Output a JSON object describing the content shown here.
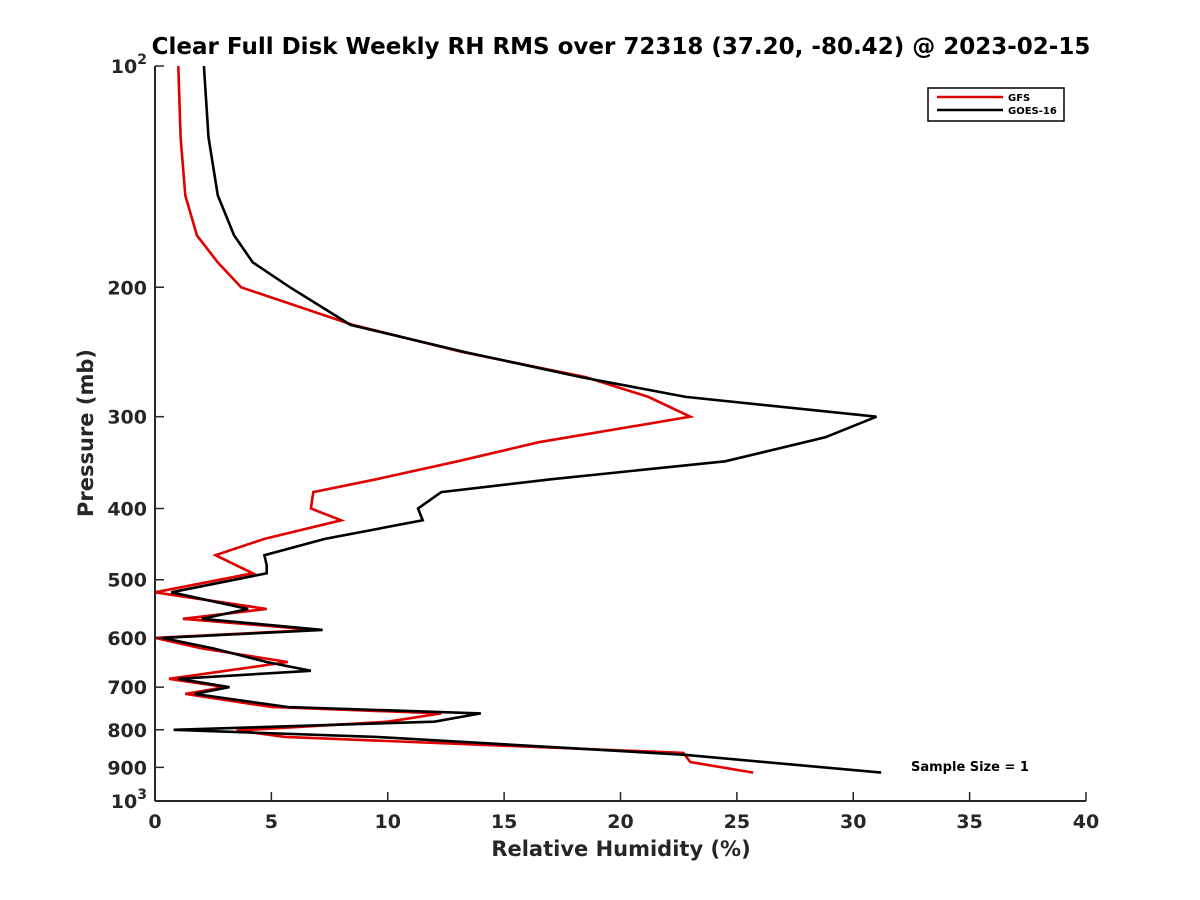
{
  "chart_data": {
    "type": "line",
    "title": "Clear Full Disk Weekly RH RMS over 72318 (37.20, -80.42) @ 2023-02-15",
    "xlabel": "Relative Humidity (%)",
    "ylabel": "Pressure (mb)",
    "xlim": [
      0,
      40
    ],
    "ylim": [
      100,
      1000
    ],
    "y_scale": "log",
    "y_reversed": true,
    "x_ticks": [
      "0",
      "5",
      "10",
      "15",
      "20",
      "25",
      "30",
      "35",
      "40"
    ],
    "y_ticks": [
      {
        "value": 100,
        "base": "10",
        "exp": "2"
      },
      {
        "value": 200,
        "label": "200"
      },
      {
        "value": 300,
        "label": "300"
      },
      {
        "value": 400,
        "label": "400"
      },
      {
        "value": 500,
        "label": "500"
      },
      {
        "value": 600,
        "label": "600"
      },
      {
        "value": 700,
        "label": "700"
      },
      {
        "value": 800,
        "label": "800"
      },
      {
        "value": 900,
        "label": "900"
      },
      {
        "value": 1000,
        "base": "10",
        "exp": "3"
      }
    ],
    "legend_position": "top-right",
    "annotation": "Sample Size = 1",
    "series": [
      {
        "name": "GFS",
        "color": "#e00000",
        "points": [
          [
            1.0,
            100
          ],
          [
            1.1,
            125
          ],
          [
            1.3,
            150
          ],
          [
            1.8,
            170
          ],
          [
            2.7,
            185
          ],
          [
            3.7,
            200
          ],
          [
            8.5,
            225
          ],
          [
            13.2,
            245
          ],
          [
            18.5,
            265
          ],
          [
            21.2,
            282
          ],
          [
            23.0,
            300
          ],
          [
            16.5,
            325
          ],
          [
            13.0,
            345
          ],
          [
            9.5,
            365
          ],
          [
            6.8,
            380
          ],
          [
            6.7,
            400
          ],
          [
            8.0,
            415
          ],
          [
            4.7,
            440
          ],
          [
            2.6,
            463
          ],
          [
            3.5,
            478
          ],
          [
            4.2,
            490
          ],
          [
            0.0,
            520
          ],
          [
            4.8,
            548
          ],
          [
            1.2,
            565
          ],
          [
            6.9,
            585
          ],
          [
            0.0,
            600
          ],
          [
            2.0,
            620
          ],
          [
            5.7,
            647
          ],
          [
            0.6,
            682
          ],
          [
            3.0,
            700
          ],
          [
            1.3,
            715
          ],
          [
            5.0,
            745
          ],
          [
            12.3,
            760
          ],
          [
            10.0,
            780
          ],
          [
            3.5,
            802
          ],
          [
            5.6,
            818
          ],
          [
            22.7,
            860
          ],
          [
            23.0,
            885
          ],
          [
            25.7,
            915
          ]
        ]
      },
      {
        "name": "GOES-16",
        "color": "#000000",
        "points": [
          [
            2.1,
            100
          ],
          [
            2.3,
            125
          ],
          [
            2.7,
            150
          ],
          [
            3.4,
            170
          ],
          [
            4.2,
            185
          ],
          [
            5.8,
            200
          ],
          [
            8.4,
            225
          ],
          [
            13.3,
            245
          ],
          [
            18.3,
            265
          ],
          [
            22.8,
            282
          ],
          [
            31.0,
            300
          ],
          [
            28.8,
            320
          ],
          [
            24.5,
            345
          ],
          [
            17.0,
            365
          ],
          [
            12.3,
            380
          ],
          [
            11.3,
            400
          ],
          [
            11.5,
            415
          ],
          [
            7.3,
            440
          ],
          [
            4.7,
            463
          ],
          [
            4.8,
            478
          ],
          [
            4.8,
            490
          ],
          [
            0.7,
            520
          ],
          [
            4.0,
            548
          ],
          [
            2.0,
            565
          ],
          [
            7.2,
            585
          ],
          [
            0.3,
            600
          ],
          [
            2.5,
            620
          ],
          [
            4.8,
            647
          ],
          [
            6.7,
            665
          ],
          [
            1.0,
            682
          ],
          [
            3.2,
            700
          ],
          [
            1.7,
            715
          ],
          [
            5.7,
            745
          ],
          [
            14.0,
            760
          ],
          [
            12.0,
            780
          ],
          [
            0.8,
            800
          ],
          [
            9.5,
            818
          ],
          [
            22.7,
            865
          ],
          [
            31.2,
            915
          ]
        ]
      }
    ]
  }
}
